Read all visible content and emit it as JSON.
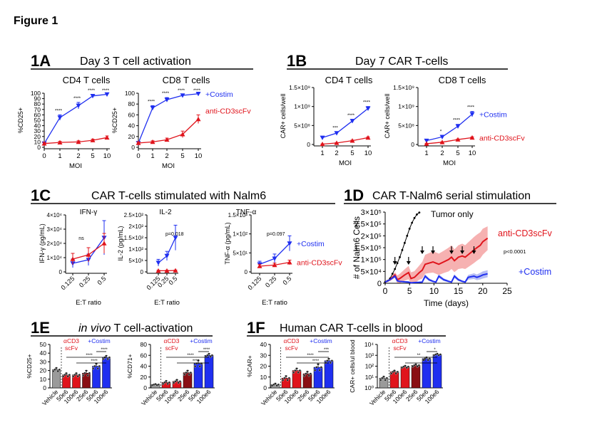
{
  "figure_title": "Figure 1",
  "colors": {
    "costim": "#1f2ff0",
    "cd3": "#e0141c",
    "black": "#000000",
    "band_red": "#f5a3a3",
    "band_blue": "#a9b2f2",
    "darkred": "#8a0f14",
    "gray": "#9a9a9a"
  },
  "panels": {
    "A": {
      "label": "1A",
      "title": "Day 3 T cell activation"
    },
    "B": {
      "label": "1B",
      "title": "Day 7 CAR T-cells"
    },
    "C": {
      "label": "1C",
      "title": "CAR T-cells stimulated with Nalm6"
    },
    "D": {
      "label": "1D",
      "title": "CAR T-Nalm6 serial stimulation"
    },
    "E": {
      "label": "1E",
      "title_italic": "in vivo",
      "title_rest": " T cell-activation"
    },
    "F": {
      "label": "1F",
      "title": "Human CAR T-cells in blood"
    }
  },
  "chart_data": [
    {
      "id": "A1",
      "type": "line",
      "title": "CD4 T cells",
      "xlabel": "MOI",
      "ylabel": "%CD25+",
      "x": [
        "0",
        "1",
        "2",
        "5",
        "10"
      ],
      "ylim": [
        0,
        100
      ],
      "yticks": [
        "0",
        "10",
        "20",
        "30",
        "40",
        "50",
        "60",
        "70",
        "80",
        "90",
        "100"
      ],
      "series": [
        {
          "name": "+Costim",
          "color": "costim",
          "marker": "tri-down",
          "values": [
            7,
            55,
            77,
            95,
            98
          ],
          "err": [
            2,
            5,
            6,
            3,
            2
          ]
        },
        {
          "name": "anti-CD3scFv",
          "color": "cd3",
          "marker": "tri-up",
          "values": [
            7,
            9,
            10,
            13,
            18
          ],
          "err": [
            2,
            2,
            2,
            2,
            3
          ]
        }
      ],
      "sig": [
        "****",
        "****",
        "****",
        "****"
      ]
    },
    {
      "id": "A2",
      "type": "line",
      "title": "CD8 T cells",
      "xlabel": "MOI",
      "ylabel": "%CD25+",
      "x": [
        "0",
        "1",
        "2",
        "5",
        "10"
      ],
      "ylim": [
        0,
        100
      ],
      "yticks": [
        "0",
        "20",
        "40",
        "60",
        "80",
        "100"
      ],
      "series": [
        {
          "name": "+Costim",
          "label": "+Costim",
          "color": "costim",
          "marker": "tri-down",
          "values": [
            8,
            73,
            88,
            96,
            99
          ],
          "err": [
            2,
            4,
            4,
            2,
            1
          ]
        },
        {
          "name": "anti-CD3scFv",
          "label": "anti-CD3scFv",
          "color": "cd3",
          "marker": "tri-up",
          "values": [
            8,
            10,
            14,
            24,
            52
          ],
          "err": [
            2,
            2,
            3,
            6,
            8
          ]
        }
      ],
      "sig": [
        "****",
        "****",
        "****",
        "****"
      ]
    },
    {
      "id": "B1",
      "type": "line",
      "title": "CD4 T cells",
      "xlabel": "MOI",
      "ylabel": "CAR+ cells/well",
      "x": [
        "1",
        "2",
        "5",
        "10"
      ],
      "ylim": [
        0,
        1500000000
      ],
      "yticks": [
        "0",
        "5×10⁸",
        "1×10⁹",
        "1.5×10⁹"
      ],
      "series": [
        {
          "name": "+Costim",
          "color": "costim",
          "marker": "tri-down",
          "values": [
            180000000,
            300000000,
            620000000,
            950000000
          ],
          "err": [
            20000000,
            30000000,
            40000000,
            50000000
          ]
        },
        {
          "name": "anti-CD3scFv",
          "color": "cd3",
          "marker": "tri-up",
          "values": [
            10000000,
            40000000,
            100000000,
            180000000
          ],
          "err": [
            5000000,
            10000000,
            15000000,
            20000000
          ]
        }
      ],
      "sig": [
        "***",
        "****",
        "****"
      ]
    },
    {
      "id": "B2",
      "type": "line",
      "title": "CD8 T cells",
      "xlabel": "MOI",
      "ylabel": "CAR+ cells/well",
      "x": [
        "1",
        "2",
        "5",
        "10"
      ],
      "ylim": [
        0,
        1500000000
      ],
      "yticks": [
        "0",
        "5×10⁸",
        "1×10⁹",
        "1.5×10⁹"
      ],
      "series": [
        {
          "name": "+Costim",
          "label": "+Costim",
          "color": "costim",
          "marker": "tri-down",
          "values": [
            100000000,
            200000000,
            480000000,
            800000000
          ],
          "err": [
            20000000,
            30000000,
            50000000,
            70000000
          ]
        },
        {
          "name": "anti-CD3scFv",
          "label": "anti-CD3scFv",
          "color": "cd3",
          "marker": "tri-up",
          "values": [
            20000000,
            60000000,
            130000000,
            180000000
          ],
          "err": [
            5000000,
            10000000,
            15000000,
            20000000
          ]
        }
      ],
      "sig": [
        "*",
        "****",
        "****"
      ]
    },
    {
      "id": "C1",
      "type": "line",
      "title": "IFN-γ",
      "xlabel": "E:T ratio",
      "ylabel": "IFN-γ (pg/mL)",
      "x": [
        "0.125",
        "0.25",
        "0.5"
      ],
      "ylim": [
        0,
        40000
      ],
      "yticks": [
        "0",
        "1×10⁴",
        "2×10⁴",
        "3×10⁴",
        "4×10⁴"
      ],
      "annotation": "ns",
      "series": [
        {
          "name": "+Costim",
          "color": "costim",
          "marker": "tri-down",
          "values": [
            6000,
            8500,
            24000
          ],
          "err": [
            3000,
            4000,
            12000
          ]
        },
        {
          "name": "anti-CD3scFv",
          "color": "cd3",
          "marker": "tri-up",
          "values": [
            9000,
            12000,
            20000
          ],
          "err": [
            4000,
            5000,
            7000
          ]
        }
      ]
    },
    {
      "id": "C2",
      "type": "line",
      "title": "IL-2",
      "xlabel": "E:T ratio",
      "ylabel": "IL-2 (pg/mL)",
      "x": [
        "0.125",
        "0.25",
        "0.5"
      ],
      "ylim": [
        0,
        250
      ],
      "yticks": [
        "0",
        "5×10¹",
        "1×10²",
        "1.5×10²",
        "2×10²",
        "2.5×10²"
      ],
      "annotation": "p=0.018",
      "series": [
        {
          "name": "+Costim",
          "color": "costim",
          "marker": "tri-down",
          "values": [
            40,
            70,
            150
          ],
          "err": [
            15,
            20,
            55
          ]
        },
        {
          "name": "anti-CD3scFv",
          "color": "cd3",
          "marker": "tri-up",
          "values": [
            5,
            5,
            6
          ],
          "err": [
            2,
            2,
            2
          ]
        }
      ]
    },
    {
      "id": "C3",
      "type": "line",
      "title": "TNF-α",
      "xlabel": "E:T ratio",
      "ylabel": "TNF-α (pg/mL)",
      "x": [
        "0.125",
        "0.25",
        "0.5"
      ],
      "ylim": [
        0,
        150
      ],
      "yticks": [
        "0",
        "5×10¹",
        "1×10²",
        "1.5×10²"
      ],
      "annotation": "p=0.097",
      "series": [
        {
          "name": "+Costim",
          "label": "+Costim",
          "color": "costim",
          "marker": "tri-down",
          "values": [
            20,
            35,
            75
          ],
          "err": [
            8,
            12,
            20
          ]
        },
        {
          "name": "anti-CD3scFv",
          "label": "anti-CD3scFv",
          "color": "cd3",
          "marker": "tri-up",
          "values": [
            15,
            18,
            25
          ],
          "err": [
            5,
            5,
            6
          ]
        }
      ]
    },
    {
      "id": "D",
      "type": "line",
      "xlabel": "Time (days)",
      "ylabel": "# of Nalm6 Cells",
      "xlim": [
        0,
        25
      ],
      "xticks": [
        "0",
        "5",
        "10",
        "15",
        "20",
        "25"
      ],
      "ylim": [
        0,
        300000
      ],
      "yticks": [
        "0",
        "5×10⁴",
        "1×10⁵",
        "1.5×10⁵",
        "2×10⁵",
        "2.5×10⁵",
        "3×10⁵"
      ],
      "pvalue": "p<0.0001",
      "arrows_at": [
        2.0,
        4.8,
        7.6,
        9.8,
        13.6,
        15.8,
        18.2
      ],
      "series": [
        {
          "name": "Tumor only",
          "label": "Tumor only",
          "color": "black",
          "x": [
            0,
            0.5,
            1,
            1.5,
            2,
            2.5,
            3,
            3.5,
            4,
            4.5,
            5,
            5.5,
            6,
            6.5,
            7
          ],
          "y": [
            5000,
            10000,
            20000,
            40000,
            60000,
            85000,
            110000,
            140000,
            170000,
            200000,
            230000,
            255000,
            275000,
            290000,
            298000
          ]
        },
        {
          "name": "anti-CD3scFv",
          "label": "anti-CD3scFv",
          "color": "cd3",
          "x": [
            0,
            1,
            2,
            2.5,
            3,
            4,
            4.8,
            5.3,
            6,
            7,
            7.6,
            8.2,
            9,
            9.8,
            10.4,
            11,
            12,
            13,
            13.6,
            14.2,
            15,
            15.8,
            16.4,
            17,
            18.2,
            18.8,
            19.5,
            20,
            21
          ],
          "y": [
            5000,
            15000,
            35000,
            15000,
            20000,
            35000,
            45000,
            20000,
            25000,
            45000,
            55000,
            80000,
            85000,
            90000,
            85000,
            80000,
            90000,
            100000,
            110000,
            95000,
            110000,
            115000,
            110000,
            120000,
            140000,
            150000,
            160000,
            175000,
            190000
          ],
          "band": [
            0,
            6000,
            12000,
            18000,
            20000,
            24000,
            28000,
            26000,
            26000,
            30000,
            35000,
            40000,
            42000,
            45000,
            45000,
            45000,
            47000,
            50000,
            50000,
            48000,
            50000,
            52000,
            50000,
            52000,
            55000,
            55000,
            55000,
            55000,
            50000
          ]
        },
        {
          "name": "+Costim",
          "label": "+Costim",
          "color": "costim",
          "x": [
            0,
            1,
            2,
            2.5,
            3,
            4,
            4.8,
            5.3,
            6,
            7,
            7.6,
            8.2,
            9,
            9.8,
            10.4,
            11,
            12,
            13,
            13.6,
            14.2,
            15,
            15.8,
            16.4,
            17,
            18.2,
            18.8,
            19.5,
            20,
            21
          ],
          "y": [
            5000,
            15000,
            30000,
            10000,
            8000,
            6000,
            5000,
            2000,
            3000,
            4000,
            5000,
            30000,
            15000,
            8000,
            5000,
            30000,
            15000,
            8000,
            5000,
            30000,
            15000,
            8000,
            5000,
            25000,
            30000,
            25000,
            30000,
            35000,
            40000
          ],
          "band": [
            0,
            3000,
            6000,
            4000,
            3000,
            3000,
            3000,
            2000,
            2000,
            2000,
            3000,
            8000,
            6000,
            4000,
            3000,
            8000,
            6000,
            4000,
            3000,
            8000,
            6000,
            4000,
            3000,
            10000,
            12000,
            12000,
            14000,
            15000,
            15000
          ]
        }
      ]
    },
    {
      "id": "E1",
      "type": "bar",
      "ylabel": "%CD25+",
      "ylim": [
        0,
        50
      ],
      "yticks": [
        "0",
        "10",
        "20",
        "30",
        "40",
        "50"
      ],
      "categories": [
        "Vehicle",
        "50e6",
        "100e6",
        "25e6",
        "50e6",
        "100e6"
      ],
      "groups": [
        "αCD3 scFv",
        "+Costim"
      ],
      "values": [
        21,
        15,
        15,
        17,
        25,
        35
      ],
      "err": [
        2,
        2,
        2,
        3,
        3,
        2
      ],
      "bar_colors": [
        "gray",
        "cd3",
        "cd3",
        "darkred",
        "costim",
        "costim"
      ],
      "sig": [
        "****",
        "****",
        "****"
      ]
    },
    {
      "id": "E2",
      "type": "bar",
      "ylabel": "%CD71+",
      "ylim": [
        0,
        80
      ],
      "yticks": [
        "0",
        "20",
        "40",
        "60",
        "80"
      ],
      "categories": [
        "Vehicle",
        "50e6",
        "100e6",
        "25e6",
        "50e6",
        "100e6"
      ],
      "groups": [
        "αCD3 scFv",
        "+Costim"
      ],
      "values": [
        6,
        10,
        12,
        28,
        45,
        60
      ],
      "err": [
        1,
        3,
        3,
        4,
        6,
        3
      ],
      "bar_colors": [
        "gray",
        "cd3",
        "cd3",
        "darkred",
        "costim",
        "costim"
      ],
      "sig": [
        "****",
        "****",
        "****"
      ]
    },
    {
      "id": "F1",
      "type": "bar",
      "ylabel": "%CAR+",
      "ylim": [
        0,
        40
      ],
      "yticks": [
        "0",
        "10",
        "20",
        "30",
        "40"
      ],
      "categories": [
        "Vehicle",
        "50e6",
        "100e6",
        "25e6",
        "50e6",
        "100e6"
      ],
      "groups": [
        "αCD3 scFv",
        "+Costim"
      ],
      "values": [
        3,
        9,
        16,
        13,
        19,
        25
      ],
      "err": [
        1,
        2,
        2,
        2,
        3,
        2
      ],
      "bar_colors": [
        "gray",
        "cd3",
        "cd3",
        "darkred",
        "costim",
        "costim"
      ],
      "sig": [
        "***",
        "****",
        "****"
      ]
    },
    {
      "id": "F2",
      "type": "bar",
      "scale": "log",
      "ylabel": "CAR+ cells/ul blood",
      "ylim": [
        1,
        10000
      ],
      "yticks": [
        "10⁰",
        "10¹",
        "10²",
        "10³",
        "10⁴"
      ],
      "categories": [
        "Vehicle",
        "50e6",
        "100e6",
        "25e6",
        "50e6",
        "100e6"
      ],
      "groups": [
        "αCD3 scFv",
        "+Costim"
      ],
      "values": [
        8,
        30,
        90,
        120,
        500,
        1200
      ],
      "err": [
        3,
        10,
        20,
        30,
        150,
        200
      ],
      "bar_colors": [
        "gray",
        "cd3",
        "cd3",
        "darkred",
        "costim",
        "costim"
      ],
      "sig": [
        "*",
        "**",
        "**"
      ]
    }
  ]
}
